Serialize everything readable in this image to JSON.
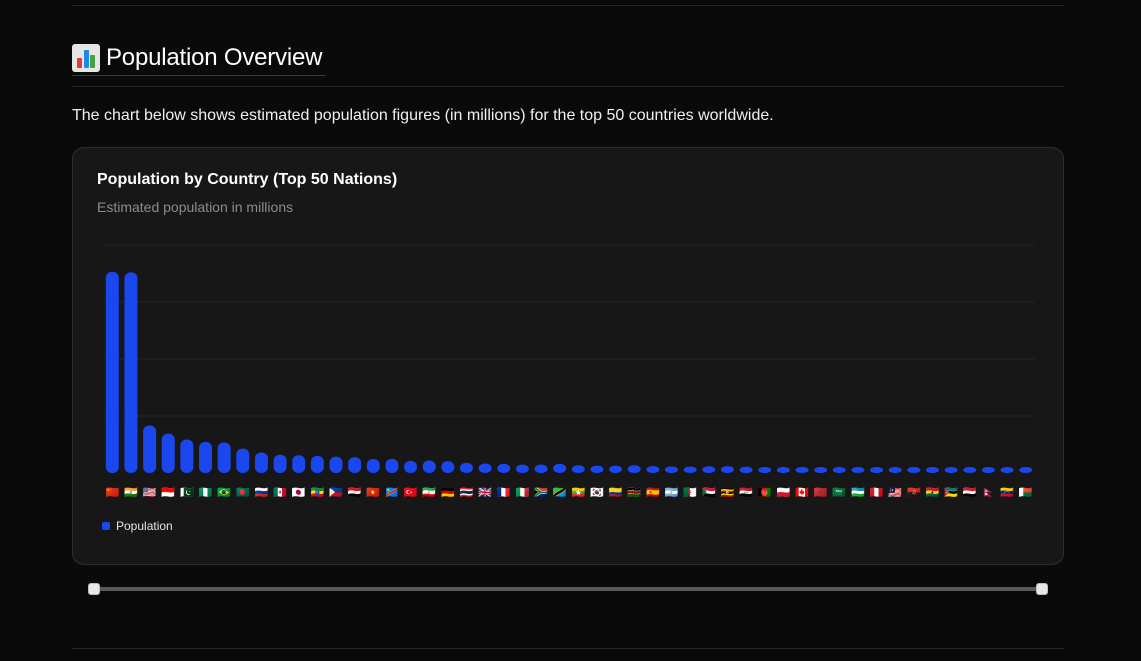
{
  "section": {
    "icon": "bar-chart-icon",
    "title": "Population Overview",
    "intro": "The chart below shows estimated population figures (in millions) for the top 50 countries worldwide."
  },
  "chart_data": {
    "type": "bar",
    "title": "Population by Country (Top 50 Nations)",
    "subtitle": "Estimated population in millions",
    "categories": [
      "🇨🇳",
      "🇮🇳",
      "🇺🇸",
      "🇮🇩",
      "🇵🇰",
      "🇳🇬",
      "🇧🇷",
      "🇧🇩",
      "🇷🇺",
      "🇲🇽",
      "🇯🇵",
      "🇪🇹",
      "🇵🇭",
      "🇪🇬",
      "🇻🇳",
      "🇨🇩",
      "🇹🇷",
      "🇮🇷",
      "🇩🇪",
      "🇹🇭",
      "🇬🇧",
      "🇫🇷",
      "🇮🇹",
      "🇿🇦",
      "🇹🇿",
      "🇲🇲",
      "🇰🇷",
      "🇨🇴",
      "🇰🇪",
      "🇪🇸",
      "🇦🇷",
      "🇩🇿",
      "🇸🇩",
      "🇺🇬",
      "🇮🇶",
      "🇦🇫",
      "🇵🇱",
      "🇨🇦",
      "🇲🇦",
      "🇸🇦",
      "🇺🇿",
      "🇵🇪",
      "🇲🇾",
      "🇦🇴",
      "🇬🇭",
      "🇲🇿",
      "🇾🇪",
      "🇳🇵",
      "🇻🇪",
      "🇲🇬"
    ],
    "series": [
      {
        "name": "Population",
        "color": "#1a47ee",
        "values": [
          1412,
          1408,
          333,
          276,
          235,
          218,
          215,
          171,
          144,
          128,
          125,
          120,
          115,
          111,
          98,
          99,
          85,
          88,
          83,
          72,
          67,
          65,
          59,
          60,
          65,
          54,
          52,
          52,
          54,
          48,
          46,
          45,
          47,
          48,
          44,
          41,
          38,
          39,
          37,
          36,
          35,
          34,
          34,
          35,
          33,
          33,
          33,
          30,
          28,
          29
        ]
      }
    ],
    "ylim": [
      0,
      1600
    ],
    "grid": true,
    "legend_position": "bottom-left"
  },
  "slider": {
    "range": [
      0,
      100
    ]
  }
}
